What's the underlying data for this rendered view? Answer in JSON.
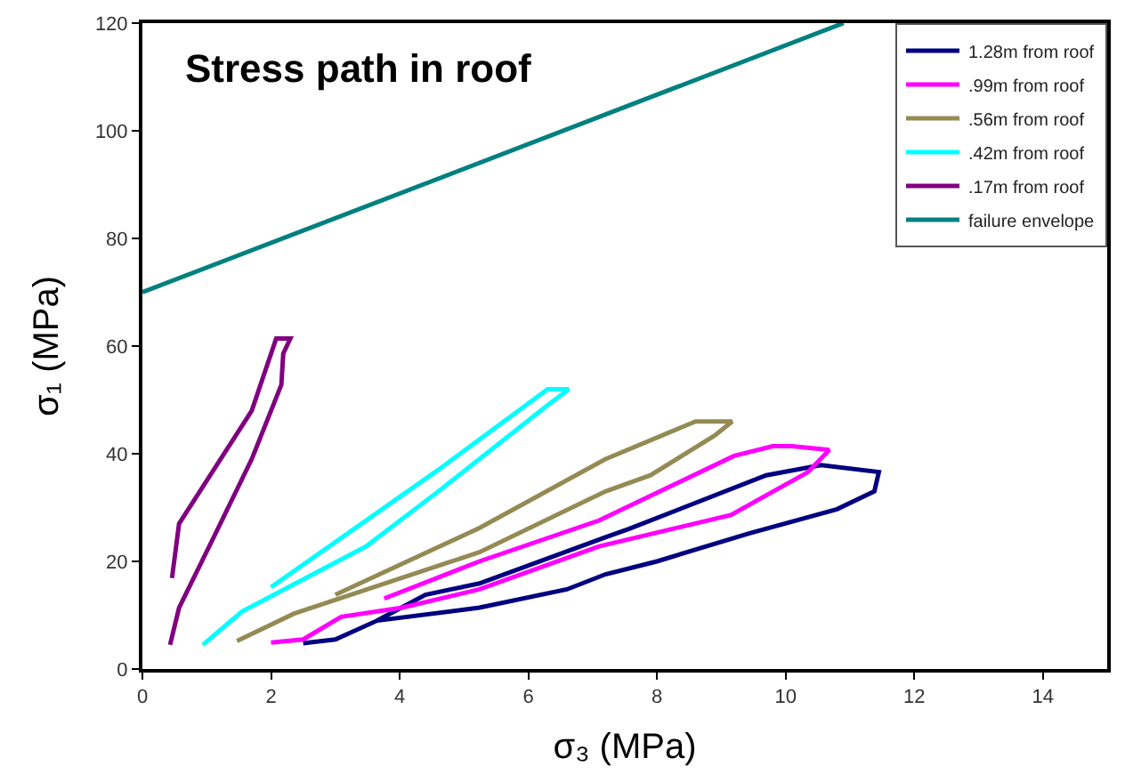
{
  "chart_data": {
    "type": "line",
    "xlabel": "σ₃ (MPa)",
    "ylabel": "σ₁ (MPa)",
    "annotations": [
      "Stress path in roof"
    ],
    "xlim": [
      0,
      15
    ],
    "xticks": [
      0,
      2,
      4,
      6,
      8,
      10,
      12,
      14
    ],
    "ylim": [
      0,
      120
    ],
    "yticks": [
      0,
      20,
      40,
      60,
      80,
      100,
      120
    ],
    "legend": "top right",
    "marker": "none",
    "line_style": "solid",
    "series": [
      {
        "name": "1.28m from roof",
        "color": "#000080",
        "x": [
          3.65,
          4.4,
          5.24,
          7.2,
          7.56,
          9.7,
          10.55,
          11.45,
          11.38,
          10.8,
          9.43,
          8.0,
          7.2,
          6.6,
          5.24,
          3.65,
          3.0,
          2.5
        ],
        "values": [
          9.0,
          13.8,
          15.9,
          24.5,
          26,
          36,
          37.9,
          36.6,
          33,
          29.7,
          25.2,
          20,
          17.6,
          14.8,
          11.4,
          9.0,
          5.5,
          4.8
        ]
      },
      {
        "name": ".99m from roof",
        "color": "#ff00ff",
        "x": [
          3.76,
          5.24,
          7.1,
          9.2,
          9.8,
          10.1,
          10.68,
          10.35,
          9.15,
          7.1,
          5.24,
          4.04,
          3.09,
          2.5,
          2.0
        ],
        "values": [
          13.1,
          20,
          27.6,
          39.6,
          41.4,
          41.4,
          40.7,
          36.6,
          28.6,
          22.8,
          14.8,
          11.4,
          9.7,
          5.5,
          4.9
        ]
      },
      {
        "name": ".56m from roof",
        "color": "#948a54",
        "x": [
          3.0,
          5.24,
          7.2,
          8.6,
          9.17,
          8.9,
          7.9,
          7.2,
          5.24,
          2.36,
          1.47
        ],
        "values": [
          13.8,
          26.2,
          39,
          46,
          46,
          43.4,
          36,
          33,
          21.7,
          10.3,
          5.2
        ]
      },
      {
        "name": ".42m from roof",
        "color": "#00ffff",
        "x": [
          2.0,
          4.6,
          6.3,
          6.63,
          6.3,
          4.6,
          3.48,
          1.55,
          0.94
        ],
        "values": [
          15.2,
          37,
          52,
          52,
          49,
          33,
          22.8,
          10.7,
          4.5
        ]
      },
      {
        "name": ".17m from roof",
        "color": "#800080",
        "x": [
          0.46,
          0.57,
          1.7,
          2.08,
          2.3,
          2.19,
          2.16,
          1.7,
          1.13,
          0.57,
          0.43
        ],
        "values": [
          16.9,
          27,
          48,
          61.4,
          61.4,
          58.6,
          52.8,
          39,
          25,
          11.4,
          4.5
        ]
      },
      {
        "name": "failure envelope",
        "color": "#008080",
        "x": [
          0,
          10.9
        ],
        "values": [
          70,
          120
        ]
      }
    ]
  }
}
